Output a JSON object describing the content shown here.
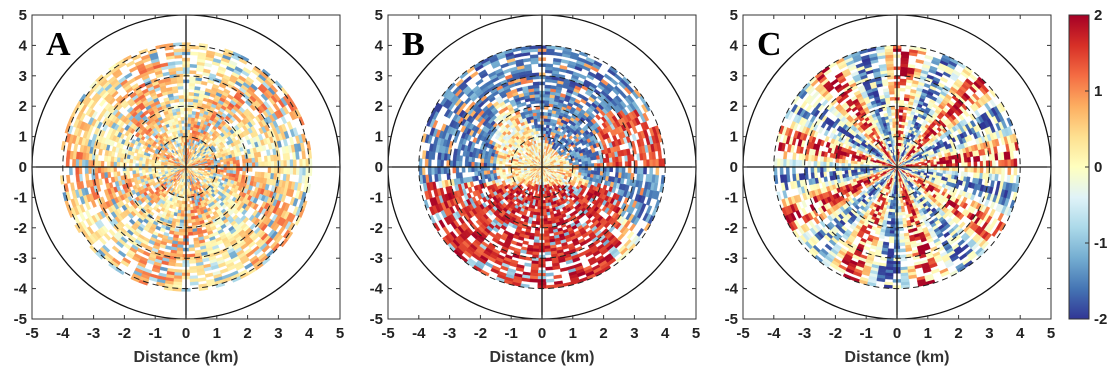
{
  "figure": {
    "colorbar": {
      "ticks": [
        2,
        1,
        0,
        -1,
        -2
      ],
      "tick_labels": [
        "2",
        "1",
        "0",
        "-1",
        "-2"
      ],
      "colormap": [
        "#313695",
        "#4575b4",
        "#74add1",
        "#abd9e9",
        "#e0f3f8",
        "#ffffbf",
        "#fee090",
        "#fdae61",
        "#f46d43",
        "#d73027",
        "#a50026"
      ],
      "range": [
        -2,
        2
      ]
    }
  },
  "chart_data": [
    {
      "type": "heatmap",
      "panel_label": "A",
      "projection": "polar field on Cartesian axes",
      "xlabel": "Distance (km)",
      "ylabel": "",
      "xlim": [
        -5,
        5
      ],
      "ylim": [
        -5,
        5
      ],
      "x_ticks": [
        -5,
        -4,
        -3,
        -2,
        -1,
        0,
        1,
        2,
        3,
        4,
        5
      ],
      "y_ticks": [
        5,
        4,
        3,
        2,
        1,
        0,
        -1,
        -2,
        -3,
        -4,
        -5
      ],
      "range_rings_dashed_km": [
        1,
        2,
        3,
        4
      ],
      "outer_circle_km": 5,
      "data_extent_km": 4.1,
      "value_range": [
        -2,
        2
      ],
      "dominant_values": "mostly 0 to +1 (orange/yellow) with scattered -1 (light blue)"
    },
    {
      "type": "heatmap",
      "panel_label": "B",
      "projection": "polar field on Cartesian axes",
      "xlabel": "Distance (km)",
      "ylabel": "",
      "xlim": [
        -5,
        5
      ],
      "ylim": [
        -5,
        5
      ],
      "x_ticks": [
        -5,
        -4,
        -3,
        -2,
        -1,
        0,
        1,
        2,
        3,
        4,
        5
      ],
      "y_ticks": [
        5,
        4,
        3,
        2,
        1,
        0,
        -1,
        -2,
        -3,
        -4,
        -5
      ],
      "range_rings_dashed_km": [
        1,
        2,
        3,
        4
      ],
      "outer_circle_km": 5,
      "data_extent_km": 4.0,
      "value_range": [
        -2,
        2
      ],
      "dominant_values": "strong -2 (blue) band upper-right to left, strong +2 (red) band lower-left"
    },
    {
      "type": "heatmap",
      "panel_label": "C",
      "projection": "polar field on Cartesian axes",
      "xlabel": "Distance (km)",
      "ylabel": "",
      "xlim": [
        -5,
        5
      ],
      "ylim": [
        -5,
        5
      ],
      "x_ticks": [
        -5,
        -4,
        -3,
        -2,
        -1,
        0,
        1,
        2,
        3,
        4,
        5
      ],
      "y_ticks": [
        5,
        4,
        3,
        2,
        1,
        0,
        -1,
        -2,
        -3,
        -4,
        -5
      ],
      "range_rings_dashed_km": [
        1,
        2,
        3,
        4
      ],
      "outer_circle_km": 5,
      "data_extent_km": 4.0,
      "value_range": [
        -2,
        2
      ],
      "dominant_values": "alternating radial streaks of +2 (red) and -2 (blue)"
    }
  ]
}
